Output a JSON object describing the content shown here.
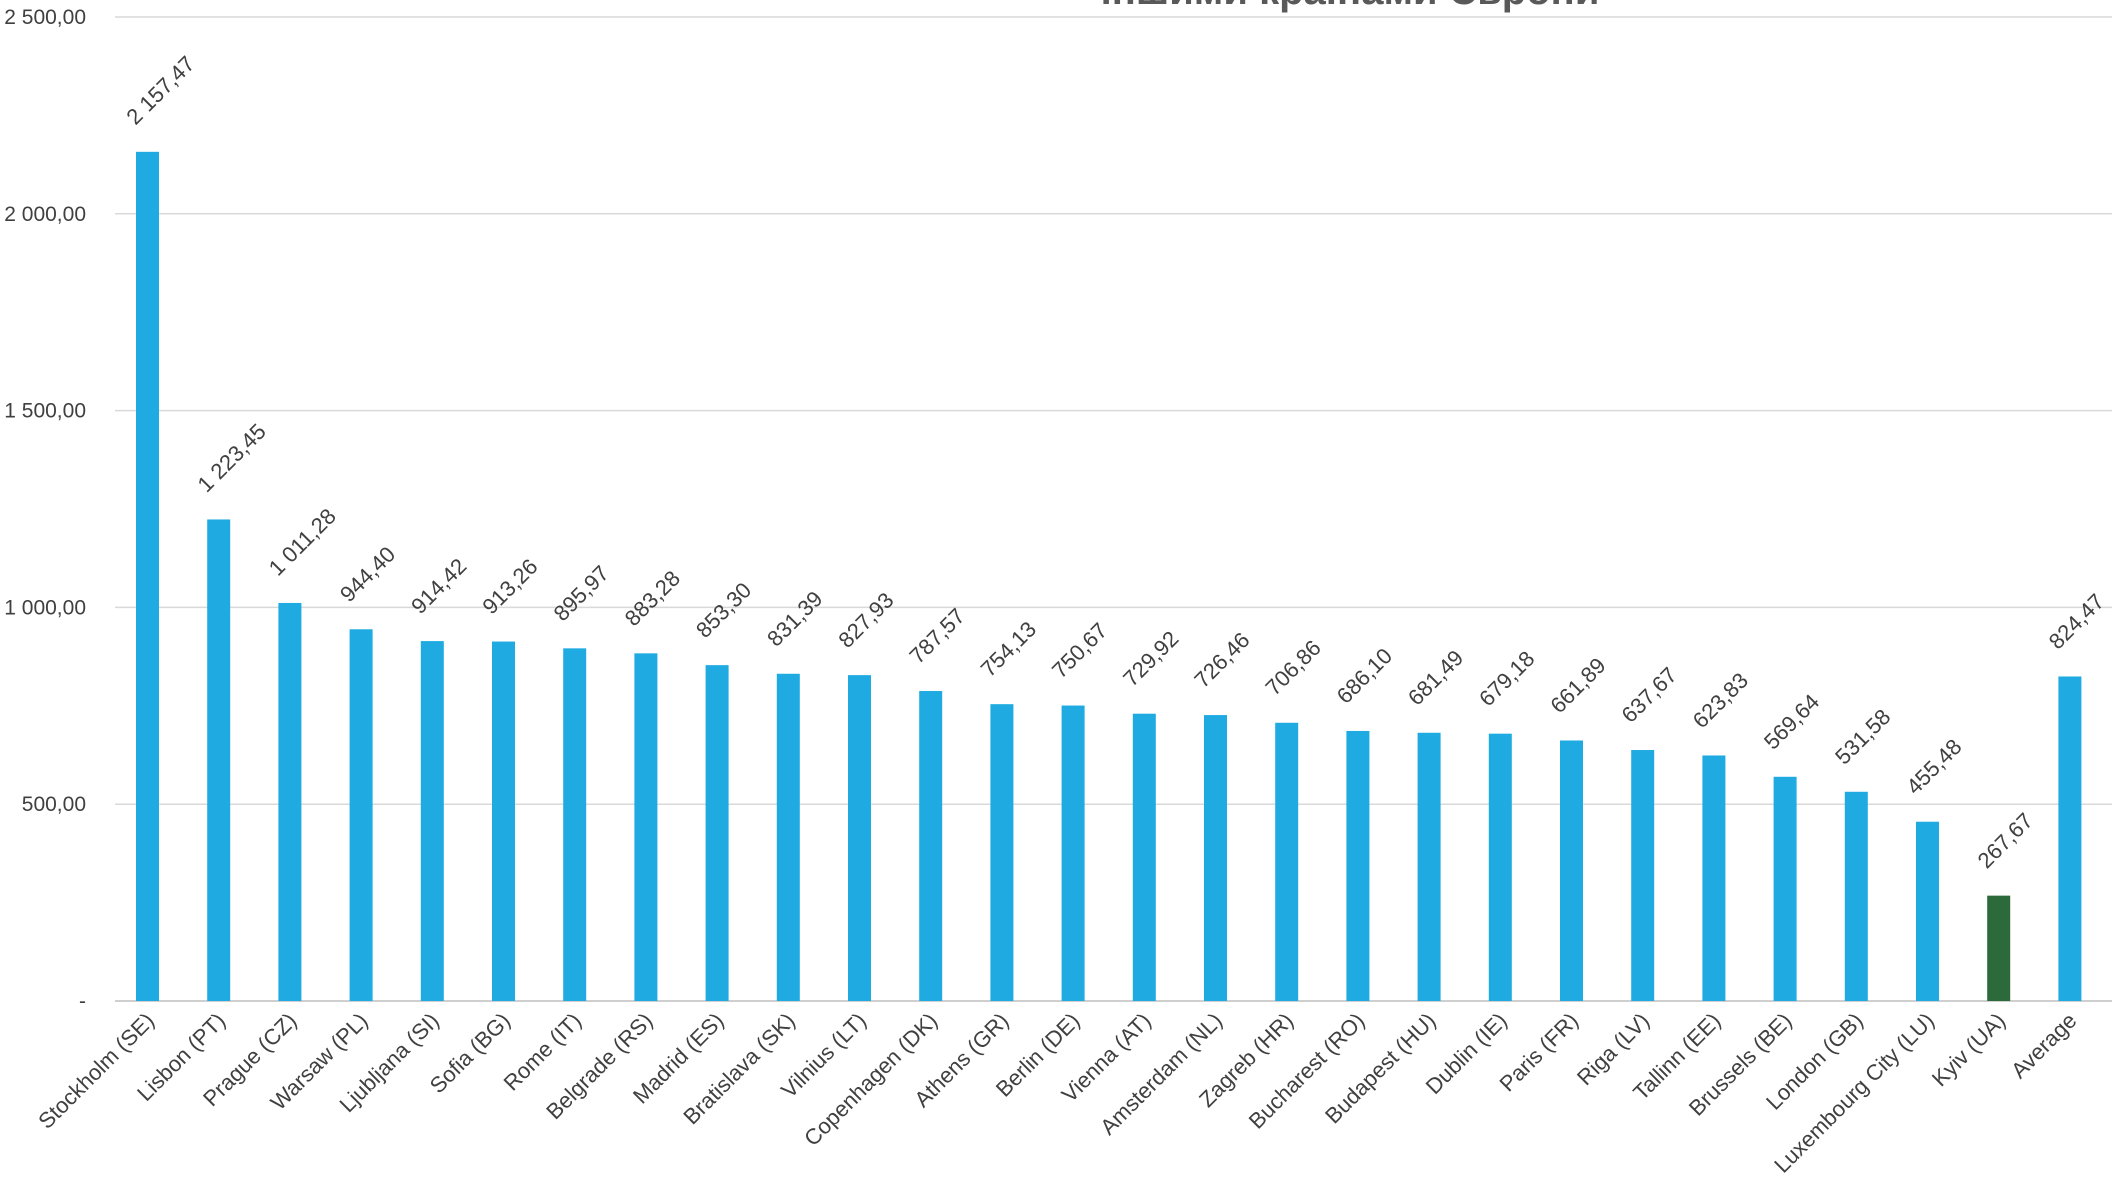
{
  "chart_data": {
    "type": "bar",
    "title": "іншими країнами Європи",
    "categories": [
      "Stockholm (SE)",
      "Lisbon (PT)",
      "Prague (CZ)",
      "Warsaw (PL)",
      "Ljubljana (SI)",
      "Sofia (BG)",
      "Rome (IT)",
      "Belgrade (RS)",
      "Madrid (ES)",
      "Bratislava (SK)",
      "Vilnius (LT)",
      "Copenhagen (DK)",
      "Athens (GR)",
      "Berlin (DE)",
      "Vienna (AT)",
      "Amsterdam (NL)",
      "Zagreb (HR)",
      "Bucharest (RO)",
      "Budapest (HU)",
      "Dublin (IE)",
      "Paris (FR)",
      "Riga (LV)",
      "Tallinn (EE)",
      "Brussels (BE)",
      "London (GB)",
      "Luxembourg City (LU)",
      "Kyiv (UA)",
      "Average"
    ],
    "values": [
      2157.47,
      1223.45,
      1011.28,
      944.4,
      914.42,
      913.26,
      895.97,
      883.28,
      853.3,
      831.39,
      827.93,
      787.57,
      754.13,
      750.67,
      729.92,
      726.46,
      706.86,
      686.1,
      681.49,
      679.18,
      661.89,
      637.67,
      623.83,
      569.64,
      531.58,
      455.48,
      267.67,
      824.47
    ],
    "value_labels": [
      "2 157,47",
      "1 223,45",
      "1 011,28",
      "944,40",
      "914,42",
      "913,26",
      "895,97",
      "883,28",
      "853,30",
      "831,39",
      "827,93",
      "787,57",
      "754,13",
      "750,67",
      "729,92",
      "726,46",
      "706,86",
      "686,10",
      "681,49",
      "679,18",
      "661,89",
      "637,67",
      "623,83",
      "569,64",
      "531,58",
      "455,48",
      "267,67",
      "824,47"
    ],
    "y_ticks": [
      0,
      500,
      1000,
      1500,
      2000,
      2500
    ],
    "y_tick_labels": [
      "-",
      "500,00",
      "1 000,00",
      "1 500,00",
      "2 000,00",
      "2 500,00"
    ],
    "ylim": [
      0,
      2500
    ],
    "xlabel": "",
    "ylabel": "",
    "grid": true,
    "legend": "none",
    "colors": {
      "bar": "#1fabe2",
      "highlight": "#2d6a3b",
      "grid": "#d9d9d9",
      "text": "#404040"
    },
    "highlight_index": 26
  }
}
